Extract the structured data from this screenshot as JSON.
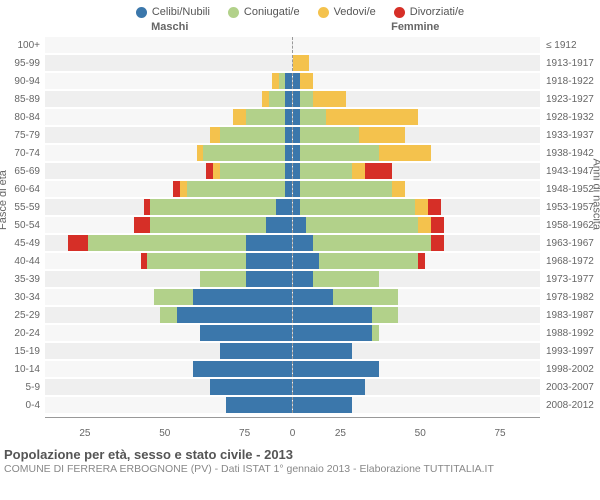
{
  "legend": [
    {
      "label": "Celibi/Nubili",
      "color": "#3b77ab"
    },
    {
      "label": "Coniugati/e",
      "color": "#b2d18a"
    },
    {
      "label": "Vedovi/e",
      "color": "#f4c24d"
    },
    {
      "label": "Divorziati/e",
      "color": "#d62f27"
    }
  ],
  "gender": {
    "male": "Maschi",
    "female": "Femmine"
  },
  "y_left_title": "Fasce di età",
  "y_right_title": "Anni di nascita",
  "x_max": 75,
  "x_ticks": [
    75,
    50,
    25,
    0,
    25,
    50,
    75
  ],
  "title": "Popolazione per età, sesso e stato civile - 2013",
  "subtitle": "COMUNE DI FERRERA ERBOGNONE (PV) - Dati ISTAT 1° gennaio 2013 - Elaborazione TUTTITALIA.IT",
  "colors": {
    "single": "#3b77ab",
    "married": "#b2d18a",
    "widowed": "#f4c24d",
    "divorced": "#d62f27",
    "row_bg_a": "#f7f7f7",
    "row_bg_b": "#efefef",
    "text": "#666"
  },
  "rows": [
    {
      "age": "100+",
      "birth": "≤ 1912",
      "m": {
        "s": 0,
        "c": 0,
        "w": 0,
        "d": 0
      },
      "f": {
        "s": 0,
        "c": 0,
        "w": 0,
        "d": 0
      }
    },
    {
      "age": "95-99",
      "birth": "1913-1917",
      "m": {
        "s": 0,
        "c": 0,
        "w": 0,
        "d": 0
      },
      "f": {
        "s": 0,
        "c": 0,
        "w": 5,
        "d": 0
      }
    },
    {
      "age": "90-94",
      "birth": "1918-1922",
      "m": {
        "s": 2,
        "c": 2,
        "w": 2,
        "d": 0
      },
      "f": {
        "s": 2,
        "c": 0,
        "w": 4,
        "d": 0
      }
    },
    {
      "age": "85-89",
      "birth": "1923-1927",
      "m": {
        "s": 2,
        "c": 5,
        "w": 2,
        "d": 0
      },
      "f": {
        "s": 2,
        "c": 4,
        "w": 10,
        "d": 0
      }
    },
    {
      "age": "80-84",
      "birth": "1928-1932",
      "m": {
        "s": 2,
        "c": 12,
        "w": 4,
        "d": 0
      },
      "f": {
        "s": 2,
        "c": 8,
        "w": 28,
        "d": 0
      }
    },
    {
      "age": "75-79",
      "birth": "1933-1937",
      "m": {
        "s": 2,
        "c": 20,
        "w": 3,
        "d": 0
      },
      "f": {
        "s": 2,
        "c": 18,
        "w": 14,
        "d": 0
      }
    },
    {
      "age": "70-74",
      "birth": "1938-1942",
      "m": {
        "s": 2,
        "c": 25,
        "w": 2,
        "d": 0
      },
      "f": {
        "s": 2,
        "c": 24,
        "w": 16,
        "d": 0
      }
    },
    {
      "age": "65-69",
      "birth": "1943-1947",
      "m": {
        "s": 2,
        "c": 20,
        "w": 2,
        "d": 2
      },
      "f": {
        "s": 2,
        "c": 16,
        "w": 4,
        "d": 8
      }
    },
    {
      "age": "60-64",
      "birth": "1948-1952",
      "m": {
        "s": 2,
        "c": 30,
        "w": 2,
        "d": 2
      },
      "f": {
        "s": 2,
        "c": 28,
        "w": 4,
        "d": 0
      }
    },
    {
      "age": "55-59",
      "birth": "1953-1957",
      "m": {
        "s": 5,
        "c": 38,
        "w": 0,
        "d": 2
      },
      "f": {
        "s": 2,
        "c": 35,
        "w": 4,
        "d": 4
      }
    },
    {
      "age": "50-54",
      "birth": "1958-1962",
      "m": {
        "s": 8,
        "c": 35,
        "w": 0,
        "d": 5
      },
      "f": {
        "s": 4,
        "c": 34,
        "w": 4,
        "d": 4
      }
    },
    {
      "age": "45-49",
      "birth": "1963-1967",
      "m": {
        "s": 14,
        "c": 48,
        "w": 0,
        "d": 6
      },
      "f": {
        "s": 6,
        "c": 36,
        "w": 0,
        "d": 4
      }
    },
    {
      "age": "40-44",
      "birth": "1968-1972",
      "m": {
        "s": 14,
        "c": 30,
        "w": 0,
        "d": 2
      },
      "f": {
        "s": 8,
        "c": 30,
        "w": 0,
        "d": 2
      }
    },
    {
      "age": "35-39",
      "birth": "1973-1977",
      "m": {
        "s": 14,
        "c": 14,
        "w": 0,
        "d": 0
      },
      "f": {
        "s": 6,
        "c": 20,
        "w": 0,
        "d": 0
      }
    },
    {
      "age": "30-34",
      "birth": "1978-1982",
      "m": {
        "s": 30,
        "c": 12,
        "w": 0,
        "d": 0
      },
      "f": {
        "s": 12,
        "c": 20,
        "w": 0,
        "d": 0
      }
    },
    {
      "age": "25-29",
      "birth": "1983-1987",
      "m": {
        "s": 35,
        "c": 5,
        "w": 0,
        "d": 0
      },
      "f": {
        "s": 24,
        "c": 8,
        "w": 0,
        "d": 0
      }
    },
    {
      "age": "20-24",
      "birth": "1988-1992",
      "m": {
        "s": 28,
        "c": 0,
        "w": 0,
        "d": 0
      },
      "f": {
        "s": 24,
        "c": 2,
        "w": 0,
        "d": 0
      }
    },
    {
      "age": "15-19",
      "birth": "1993-1997",
      "m": {
        "s": 22,
        "c": 0,
        "w": 0,
        "d": 0
      },
      "f": {
        "s": 18,
        "c": 0,
        "w": 0,
        "d": 0
      }
    },
    {
      "age": "10-14",
      "birth": "1998-2002",
      "m": {
        "s": 30,
        "c": 0,
        "w": 0,
        "d": 0
      },
      "f": {
        "s": 26,
        "c": 0,
        "w": 0,
        "d": 0
      }
    },
    {
      "age": "5-9",
      "birth": "2003-2007",
      "m": {
        "s": 25,
        "c": 0,
        "w": 0,
        "d": 0
      },
      "f": {
        "s": 22,
        "c": 0,
        "w": 0,
        "d": 0
      }
    },
    {
      "age": "0-4",
      "birth": "2008-2012",
      "m": {
        "s": 20,
        "c": 0,
        "w": 0,
        "d": 0
      },
      "f": {
        "s": 18,
        "c": 0,
        "w": 0,
        "d": 0
      }
    }
  ]
}
